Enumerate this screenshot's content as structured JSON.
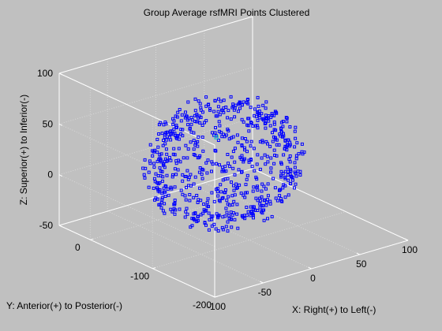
{
  "chart_data": {
    "type": "scatter",
    "title": "Group Average rsfMRI Points Clustered",
    "xlabel": "X: Right(+) to Left(-)",
    "ylabel": "Y: Anterior(+) to Posterior(-)",
    "zlabel": "Z: Superior(+) to Inferior(-)",
    "xlim": [
      -100,
      100
    ],
    "ylim": [
      -200,
      50
    ],
    "zlim": [
      -50,
      100
    ],
    "x_ticks": [
      -100,
      -50,
      0,
      50,
      100
    ],
    "y_ticks": [
      -200,
      -100,
      0
    ],
    "z_ticks": [
      -50,
      0,
      50,
      100
    ],
    "grid": true,
    "marker": "square",
    "series_color": "#0000ff",
    "highlight_color": "#00c0c0",
    "point_count": 700,
    "cluster_center": [
      0,
      -60,
      15
    ],
    "cluster_radius": [
      70,
      75,
      70
    ],
    "highlight_point": [
      -5,
      -55,
      40
    ]
  }
}
